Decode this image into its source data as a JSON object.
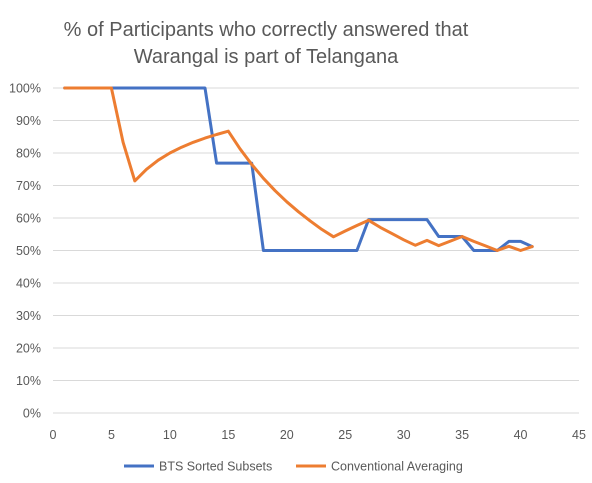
{
  "chart_data": {
    "type": "line",
    "title_lines": [
      "% of Participants who correctly answered that",
      "Warangal is part of Telangana"
    ],
    "xlabel": "",
    "ylabel": "",
    "xlim": [
      0,
      45
    ],
    "ylim": [
      0,
      100
    ],
    "x_ticks": [
      0,
      5,
      10,
      15,
      20,
      25,
      30,
      35,
      40,
      45
    ],
    "x_tick_labels": [
      "0",
      "5",
      "10",
      "15",
      "20",
      "25",
      "30",
      "35",
      "40",
      "45"
    ],
    "y_ticks": [
      0,
      10,
      20,
      30,
      40,
      50,
      60,
      70,
      80,
      90,
      100
    ],
    "y_tick_labels": [
      "0%",
      "10%",
      "20%",
      "30%",
      "40%",
      "50%",
      "60%",
      "70%",
      "80%",
      "90%",
      "100%"
    ],
    "grid": "horizontal",
    "legend_position": "bottom",
    "series": [
      {
        "name": "BTS Sorted Subsets",
        "color": "#4472c4",
        "x": [
          1,
          2,
          3,
          4,
          5,
          6,
          7,
          8,
          9,
          10,
          11,
          12,
          13,
          14,
          15,
          16,
          17,
          18,
          19,
          20,
          21,
          22,
          23,
          24,
          25,
          26,
          27,
          28,
          29,
          30,
          31,
          32,
          33,
          34,
          35,
          36,
          37,
          38,
          39,
          40,
          41
        ],
        "y": [
          100,
          100,
          100,
          100,
          100,
          100,
          100,
          100,
          100,
          100,
          100,
          100,
          100,
          76.9,
          76.9,
          76.9,
          76.9,
          50,
          50,
          50,
          50,
          50,
          50,
          50,
          50,
          50,
          59.5,
          59.5,
          59.5,
          59.5,
          59.5,
          59.5,
          54.3,
          54.3,
          54.3,
          50,
          50,
          50,
          52.8,
          52.8,
          51.2
        ]
      },
      {
        "name": "Conventional Averaging",
        "color": "#ed7d31",
        "x": [
          1,
          2,
          3,
          4,
          5,
          6,
          7,
          8,
          9,
          10,
          11,
          12,
          13,
          14,
          15,
          16,
          17,
          18,
          19,
          20,
          21,
          22,
          23,
          24,
          25,
          26,
          27,
          28,
          29,
          30,
          31,
          32,
          33,
          34,
          35,
          36,
          37,
          38,
          39,
          40,
          41
        ],
        "y": [
          100,
          100,
          100,
          100,
          100,
          83.3,
          71.4,
          75,
          77.8,
          80,
          81.8,
          83.3,
          84.6,
          85.7,
          86.7,
          81.3,
          76.5,
          72.2,
          68.4,
          65,
          61.9,
          59.1,
          56.5,
          54.2,
          56,
          57.7,
          59.3,
          57.1,
          55.2,
          53.3,
          51.6,
          53.1,
          51.5,
          52.9,
          54.3,
          52.8,
          51.4,
          50,
          51.3,
          50,
          51.2
        ]
      }
    ]
  }
}
